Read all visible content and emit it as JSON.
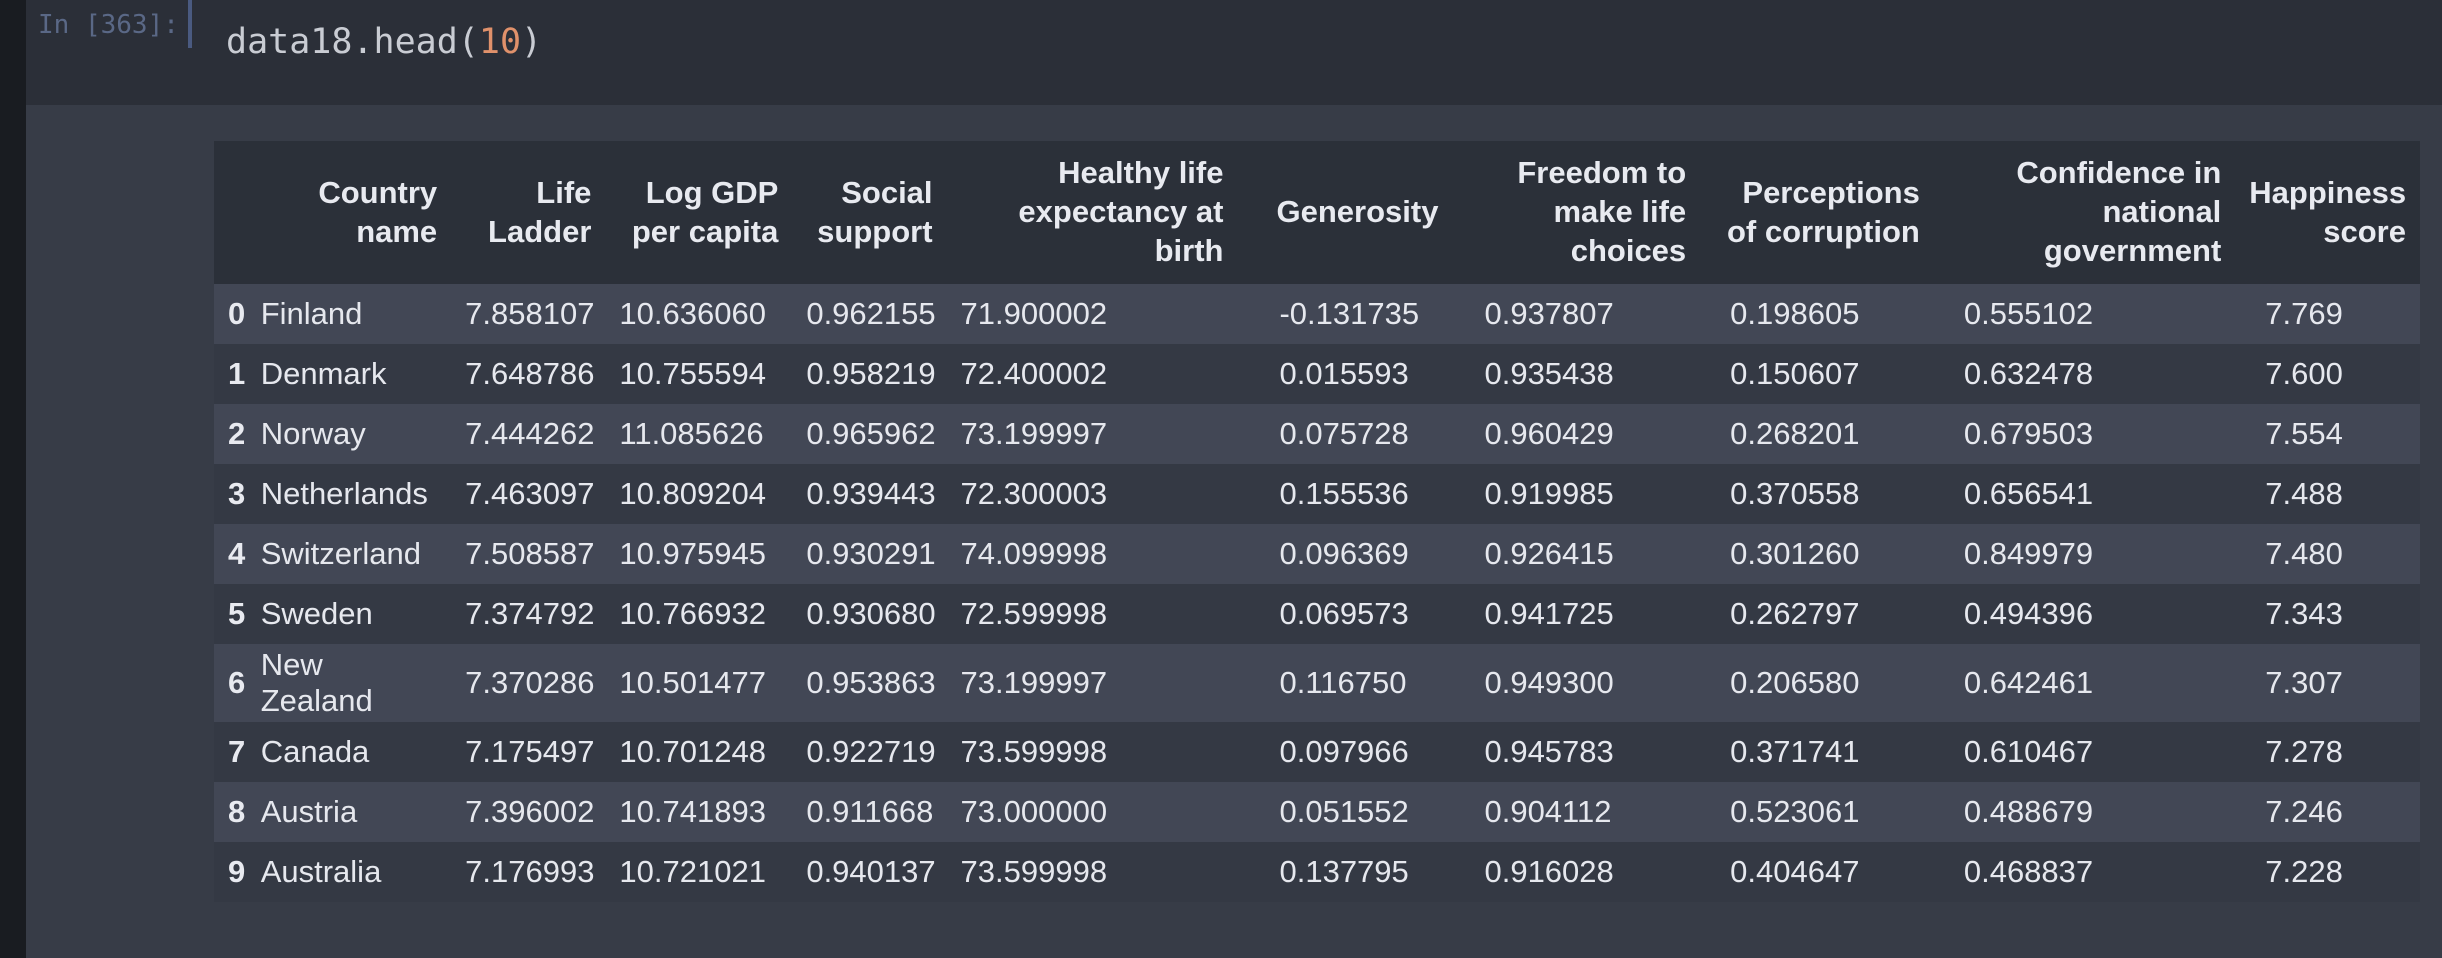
{
  "cell": {
    "prompt": "In [363]:",
    "code_prefix": "data18.head(",
    "code_arg": "10",
    "code_suffix": ")"
  },
  "table": {
    "columns": [
      "",
      "Country name",
      "Life Ladder",
      "Log GDP per capita",
      "Social support",
      "Healthy life expectancy at birth",
      "Generosity",
      "Freedom to make life choices",
      "Perceptions of corruption",
      "Confidence in national government",
      "Happiness score"
    ],
    "rows": [
      {
        "index": "0",
        "country": "Finland",
        "ladder": "7.858107",
        "gdp": "10.636060",
        "social": "0.962155",
        "health": "71.900002",
        "generosity": "-0.131735",
        "freedom": "0.937807",
        "corruption": "0.198605",
        "confidence": "0.555102",
        "happiness": "7.769"
      },
      {
        "index": "1",
        "country": "Denmark",
        "ladder": "7.648786",
        "gdp": "10.755594",
        "social": "0.958219",
        "health": "72.400002",
        "generosity": "0.015593",
        "freedom": "0.935438",
        "corruption": "0.150607",
        "confidence": "0.632478",
        "happiness": "7.600"
      },
      {
        "index": "2",
        "country": "Norway",
        "ladder": "7.444262",
        "gdp": "11.085626",
        "social": "0.965962",
        "health": "73.199997",
        "generosity": "0.075728",
        "freedom": "0.960429",
        "corruption": "0.268201",
        "confidence": "0.679503",
        "happiness": "7.554"
      },
      {
        "index": "3",
        "country": "Netherlands",
        "ladder": "7.463097",
        "gdp": "10.809204",
        "social": "0.939443",
        "health": "72.300003",
        "generosity": "0.155536",
        "freedom": "0.919985",
        "corruption": "0.370558",
        "confidence": "0.656541",
        "happiness": "7.488"
      },
      {
        "index": "4",
        "country": "Switzerland",
        "ladder": "7.508587",
        "gdp": "10.975945",
        "social": "0.930291",
        "health": "74.099998",
        "generosity": "0.096369",
        "freedom": "0.926415",
        "corruption": "0.301260",
        "confidence": "0.849979",
        "happiness": "7.480"
      },
      {
        "index": "5",
        "country": "Sweden",
        "ladder": "7.374792",
        "gdp": "10.766932",
        "social": "0.930680",
        "health": "72.599998",
        "generosity": "0.069573",
        "freedom": "0.941725",
        "corruption": "0.262797",
        "confidence": "0.494396",
        "happiness": "7.343"
      },
      {
        "index": "6",
        "country": "New Zealand",
        "ladder": "7.370286",
        "gdp": "10.501477",
        "social": "0.953863",
        "health": "73.199997",
        "generosity": "0.116750",
        "freedom": "0.949300",
        "corruption": "0.206580",
        "confidence": "0.642461",
        "happiness": "7.307"
      },
      {
        "index": "7",
        "country": "Canada",
        "ladder": "7.175497",
        "gdp": "10.701248",
        "social": "0.922719",
        "health": "73.599998",
        "generosity": "0.097966",
        "freedom": "0.945783",
        "corruption": "0.371741",
        "confidence": "0.610467",
        "happiness": "7.278"
      },
      {
        "index": "8",
        "country": "Austria",
        "ladder": "7.396002",
        "gdp": "10.741893",
        "social": "0.911668",
        "health": "73.000000",
        "generosity": "0.051552",
        "freedom": "0.904112",
        "corruption": "0.523061",
        "confidence": "0.488679",
        "happiness": "7.246"
      },
      {
        "index": "9",
        "country": "Australia",
        "ladder": "7.176993",
        "gdp": "10.721021",
        "social": "0.940137",
        "health": "73.599998",
        "generosity": "0.137795",
        "freedom": "0.916028",
        "corruption": "0.404647",
        "confidence": "0.468837",
        "happiness": "7.228"
      }
    ]
  }
}
